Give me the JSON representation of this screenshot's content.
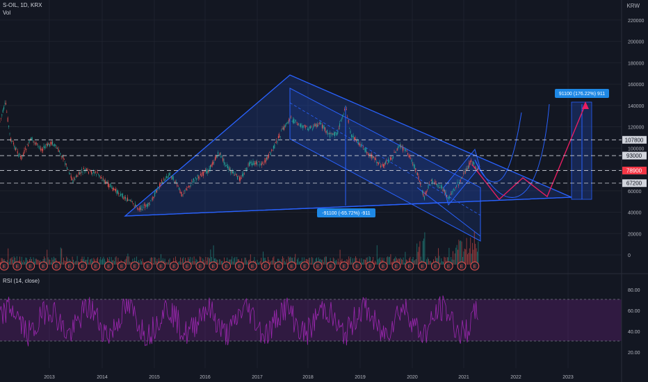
{
  "header": {
    "symbol_line": "S-OIL, 1D, KRX",
    "volume_label": "Vol",
    "currency": "KRW"
  },
  "rsi": {
    "label": "RSI (14, close)",
    "ticks": [
      "80.00",
      "60.00",
      "40.00",
      "20.00"
    ]
  },
  "price_axis": {
    "ticks": [
      "220000",
      "200000",
      "180000",
      "160000",
      "140000",
      "120000",
      "100000",
      "80000",
      "60000",
      "40000",
      "20000",
      "0"
    ]
  },
  "price_lines": [
    {
      "label": "107800",
      "value": 107800
    },
    {
      "label": "93000",
      "value": 93000
    },
    {
      "label": "79000",
      "value": 79000
    },
    {
      "label": "67200",
      "value": 67200
    }
  ],
  "current_price": {
    "label": "78900",
    "color": "#f23645"
  },
  "time_axis": {
    "labels": [
      "2013",
      "2014",
      "2015",
      "2016",
      "2017",
      "2018",
      "2019",
      "2020",
      "2021",
      "2022",
      "2023"
    ]
  },
  "measure_down": {
    "label": "-91100 (-65.72%) -911"
  },
  "measure_up": {
    "label": "91100 (176.22%) 911"
  },
  "earnings_marker": "E",
  "colors": {
    "up": "#26a69a",
    "down": "#ef5350",
    "rsi": "#9c27b0",
    "drawing": "#2962ff",
    "projection": "#e91e63",
    "accent": "#1e88e5"
  }
}
